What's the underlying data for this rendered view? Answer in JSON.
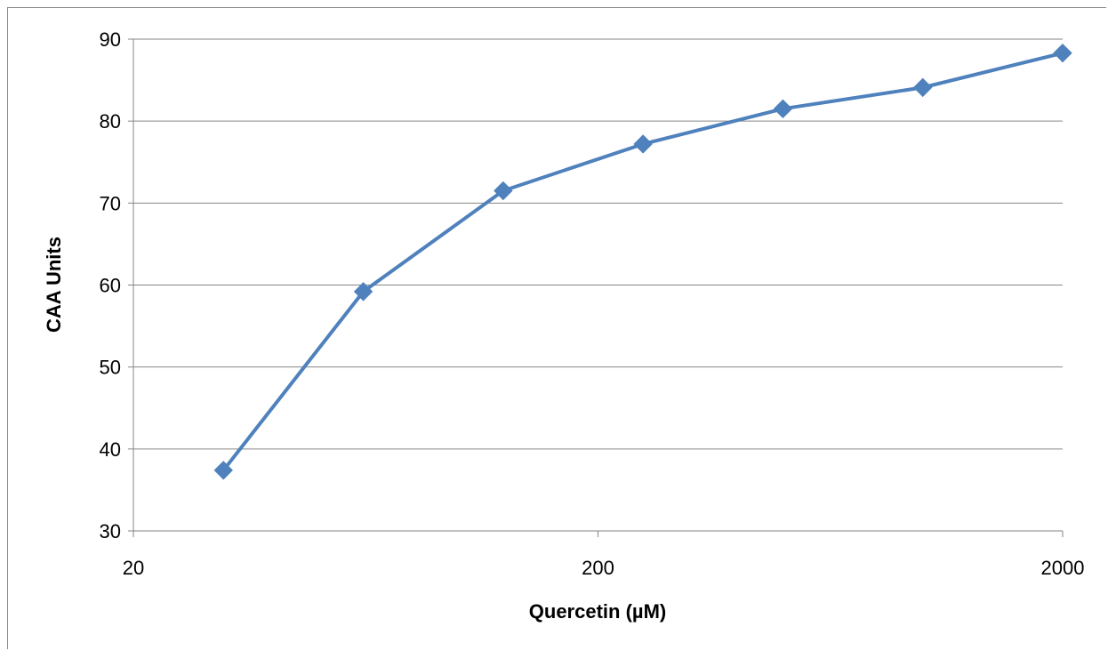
{
  "chart_data": {
    "type": "line",
    "title": "",
    "xlabel": "Quercetin (µM)",
    "ylabel": "CAA Units",
    "x_scale": "log",
    "xlim": [
      20,
      2000
    ],
    "ylim": [
      30,
      90
    ],
    "x_ticks": [
      20,
      200,
      2000
    ],
    "y_ticks": [
      30,
      40,
      50,
      60,
      70,
      80,
      90
    ],
    "grid": "horizontal",
    "legend": "none",
    "series": [
      {
        "color": "#4F81BD",
        "marker": "diamond",
        "x": [
          31.25,
          62.5,
          125,
          250,
          500,
          1000,
          2000
        ],
        "y": [
          37.4,
          59.2,
          71.5,
          77.2,
          81.5,
          84.1,
          88.3
        ]
      }
    ]
  }
}
